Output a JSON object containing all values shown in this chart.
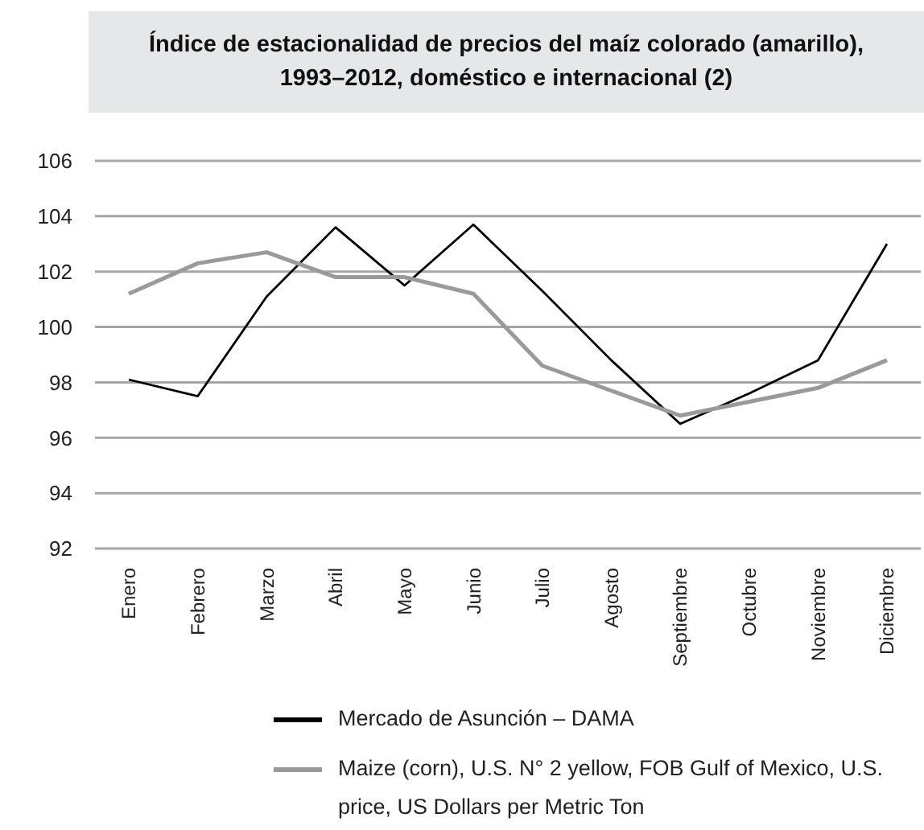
{
  "chart_data": {
    "type": "line",
    "title": "Índice de estacionalidad de precios del maíz colorado (amarillo), 1993–2012, doméstico e internacional (2)",
    "categories": [
      "Enero",
      "Febrero",
      "Marzo",
      "Abril",
      "Mayo",
      "Junio",
      "Julio",
      "Agosto",
      "Septiembre",
      "Octubre",
      "Noviembre",
      "Diciembre"
    ],
    "series": [
      {
        "name": "Mercado de Asunción – DAMA",
        "color": "#000000",
        "values": [
          98.1,
          97.5,
          101.1,
          103.6,
          101.5,
          103.7,
          101.3,
          98.8,
          96.5,
          97.6,
          98.8,
          103.0
        ]
      },
      {
        "name": "Maize (corn), U.S. N° 2 yellow, FOB Gulf of Mexico, U.S. price, US Dollars per Metric Ton",
        "color": "#9a9a9a",
        "values": [
          101.2,
          102.3,
          102.7,
          101.8,
          101.8,
          101.2,
          98.6,
          97.7,
          96.8,
          97.3,
          97.8,
          98.8
        ]
      }
    ],
    "ylim": [
      92,
      106
    ],
    "yticks": [
      92,
      94,
      96,
      98,
      100,
      102,
      104,
      106
    ],
    "grid": "y",
    "legend": "bottom",
    "marker": "none",
    "line_style": "solid"
  }
}
